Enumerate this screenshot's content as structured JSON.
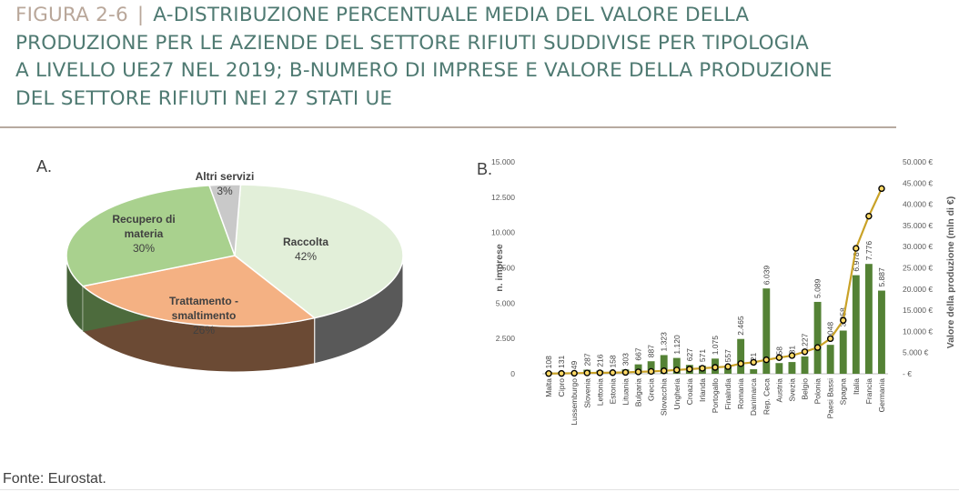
{
  "title": {
    "label": "FIGURA 2-6",
    "separator": "|",
    "line1": "A-DISTRIBUZIONE PERCENTUALE MEDIA DEL VALORE DELLA",
    "line2": "PRODUZIONE PER LE AZIENDE DEL SETTORE RIFIUTI SUDDIVISE PER TIPOLOGIA",
    "line3": "A LIVELLO UE27 NEL 2019; B-NUMERO DI IMPRESE E VALORE DELLA PRODUZIONE",
    "line4": "DEL SETTORE RIFIUTI NEI 27 STATI UE"
  },
  "panel_a_label": "A.",
  "panel_b_label": "B.",
  "source": "Fonte: Eurostat.",
  "colors": {
    "title": "#4f7a72",
    "title_label": "#b9a79a",
    "bar": "#548235",
    "line": "#c9a227",
    "marker_fill": "#ffd966",
    "slice_raccolta": "#e2efd9",
    "slice_trattamento": "#f4b183",
    "slice_recupero": "#a9d18e",
    "slice_altri": "#c9c9c9"
  },
  "chart_data": [
    {
      "type": "pie",
      "title": "A.",
      "slices": [
        {
          "label_lines": [
            "Raccolta"
          ],
          "pct_text": "42%",
          "value": 42
        },
        {
          "label_lines": [
            "Trattamento -",
            "smaltimento"
          ],
          "pct_text": "26%",
          "value": 26
        },
        {
          "label_lines": [
            "Recupero di",
            "materia"
          ],
          "pct_text": "30%",
          "value": 30
        },
        {
          "label_lines": [
            "Altri servizi"
          ],
          "pct_text": "3%",
          "value": 3
        }
      ]
    },
    {
      "type": "bar",
      "title": "B.",
      "ylabel": "n. imprese",
      "y2label": "Valore della produzione (mln di €)",
      "ylim": [
        0,
        15000
      ],
      "y2lim": [
        0,
        50000
      ],
      "yticks": [
        "0",
        "2.500",
        "5.000",
        "7.500",
        "10.000",
        "12.500",
        "15.000"
      ],
      "y2ticks": [
        "-  €",
        "5.000 €",
        "10.000 €",
        "15.000 €",
        "20.000 €",
        "25.000 €",
        "30.000 €",
        "35.000 €",
        "40.000 €",
        "45.000 €",
        "50.000 €"
      ],
      "categories": [
        "Malta",
        "Cipro",
        "Lussemburgo",
        "Slovenia",
        "Lettonia",
        "Estonia",
        "Lituania",
        "Bulgaria",
        "Grecia",
        "Slovacchia",
        "Ungheria",
        "Croazia",
        "Irlanda",
        "Portogallo",
        "Finalndia",
        "Romania",
        "Danimarca",
        "Rep. Ceca",
        "Austria",
        "Svezia",
        "Belgio",
        "Polonia",
        "Paesi Bassi",
        "Spagna",
        "Italia",
        "Francia",
        "Germania"
      ],
      "series": [
        {
          "name": "n. imprese",
          "values": [
            108,
            131,
            49,
            287,
            216,
            158,
            303,
            667,
            887,
            1323,
            1120,
            627,
            571,
            1075,
            557,
            2465,
            321,
            6039,
            758,
            831,
            1227,
            5089,
            2048,
            3058,
            6978,
            7776,
            5887
          ],
          "value_labels": [
            "108",
            "131",
            "49",
            "287",
            "216",
            "158",
            "303",
            "667",
            "887",
            "1.323",
            "1.120",
            "627",
            "571",
            "1.075",
            "557",
            "2.465",
            "321",
            "6.039",
            "758",
            "831",
            "1.227",
            "5.089",
            "2.048",
            "3.058",
            "6.978",
            "7.776",
            "5.887"
          ]
        },
        {
          "name": "Valore della produzione (mln di €)",
          "axis": "right",
          "values": [
            60,
            80,
            130,
            200,
            230,
            270,
            330,
            450,
            550,
            700,
            900,
            1100,
            1300,
            1500,
            1700,
            2400,
            2700,
            3300,
            3800,
            4300,
            5200,
            6200,
            8300,
            12600,
            29600,
            37200,
            43700
          ]
        }
      ]
    }
  ]
}
